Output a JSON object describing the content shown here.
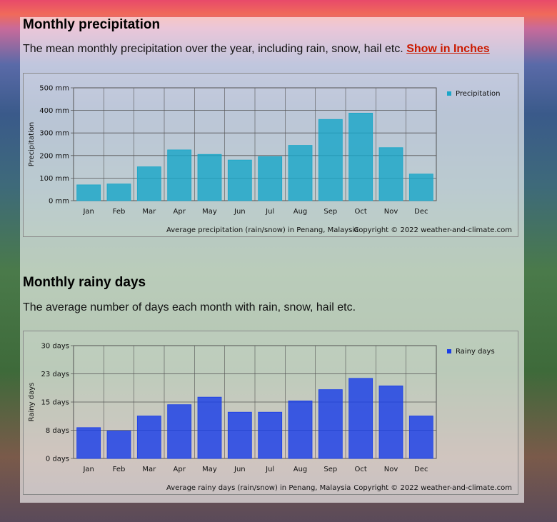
{
  "section1": {
    "title": "Monthly precipitation",
    "description": "The mean monthly precipitation over the year, including rain, snow, hail etc.",
    "link": "Show in Inches"
  },
  "section2": {
    "title": "Monthly rainy days",
    "description": "The average number of days each month with rain, snow, hail etc."
  },
  "chart_data": [
    {
      "type": "bar",
      "title": "Monthly precipitation",
      "categories": [
        "Jan",
        "Feb",
        "Mar",
        "Apr",
        "May",
        "Jun",
        "Jul",
        "Aug",
        "Sep",
        "Oct",
        "Nov",
        "Dec"
      ],
      "values": [
        70,
        74,
        150,
        225,
        205,
        180,
        195,
        245,
        360,
        388,
        235,
        118
      ],
      "yticks": [
        "0 mm",
        "100 mm",
        "200 mm",
        "300 mm",
        "400 mm",
        "500 mm"
      ],
      "ylim": [
        0,
        500
      ],
      "ylabel": "Precipitation",
      "legend": "Precipitation",
      "color": "#1aa6c8",
      "footer_caption": "Average precipitation (rain/snow) in Penang, Malaysia",
      "footer_copyright": "Copyright © 2022  weather-and-climate.com"
    },
    {
      "type": "bar",
      "title": "Monthly rainy days",
      "categories": [
        "Jan",
        "Feb",
        "Mar",
        "Apr",
        "May",
        "Jun",
        "Jul",
        "Aug",
        "Sep",
        "Oct",
        "Nov",
        "Dec"
      ],
      "values": [
        8.2,
        7.3,
        11.3,
        14.3,
        16.3,
        12.3,
        12.3,
        15.3,
        18.3,
        21.3,
        19.3,
        11.3
      ],
      "yticks": [
        "0 days",
        "8 days",
        "15 days",
        "23 days",
        "30 days"
      ],
      "ylim": [
        0,
        30
      ],
      "ylabel": "Rainy days",
      "legend": "Rainy days",
      "color": "#1a3ee8",
      "footer_caption": "Average rainy days (rain/snow) in Penang, Malaysia",
      "footer_copyright": "Copyright © 2022  weather-and-climate.com"
    }
  ]
}
